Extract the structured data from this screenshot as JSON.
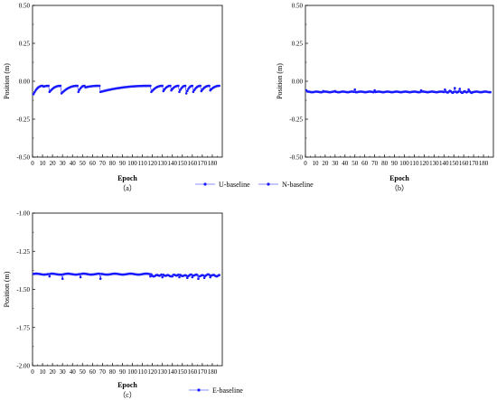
{
  "chart_data": [
    {
      "id": "a",
      "type": "scatter",
      "sublabel": "（a）",
      "xlabel": "Epoch",
      "ylabel": "Position (m)",
      "xlim": [
        0,
        190
      ],
      "ylim": [
        -0.5,
        0.5
      ],
      "xticks": [
        "0",
        "10",
        "20",
        "30",
        "40",
        "50",
        "60",
        "70",
        "80",
        "90",
        "100",
        "110",
        "120",
        "130",
        "140",
        "150",
        "160",
        "170",
        "180"
      ],
      "yticks": [
        "0.50",
        "0.25",
        "0.00",
        "-0.25",
        "-0.50"
      ],
      "ytick_values": [
        0.5,
        0.25,
        0,
        -0.25,
        -0.5
      ],
      "color": "#1a1aff",
      "grid": false,
      "series": [
        {
          "name": "U-baseline",
          "pattern": "sawtooth",
          "baseline": -0.03,
          "segments": [
            [
              1,
              10,
              -0.085
            ],
            [
              11,
              16,
              -0.035
            ],
            [
              17,
              28,
              -0.07
            ],
            [
              29,
              45,
              -0.08
            ],
            [
              46,
              52,
              -0.07
            ],
            [
              53,
              67,
              -0.04
            ],
            [
              68,
              118,
              -0.07
            ],
            [
              119,
              130,
              -0.07
            ],
            [
              131,
              138,
              -0.065
            ],
            [
              139,
              146,
              -0.06
            ],
            [
              147,
              153,
              -0.07
            ],
            [
              154,
              160,
              -0.08
            ],
            [
              161,
              168,
              -0.07
            ],
            [
              169,
              177,
              -0.065
            ],
            [
              178,
              187,
              -0.06
            ]
          ]
        }
      ]
    },
    {
      "id": "b",
      "type": "scatter",
      "sublabel": "（b）",
      "xlabel": "Epoch",
      "ylabel": "Position (m)",
      "xlim": [
        0,
        190
      ],
      "ylim": [
        -0.5,
        0.5
      ],
      "xticks": [
        "0",
        "10",
        "20",
        "30",
        "40",
        "50",
        "60",
        "70",
        "80",
        "90",
        "100",
        "110",
        "120",
        "130",
        "140",
        "150",
        "160",
        "170",
        "180"
      ],
      "yticks": [
        "0.50",
        "0.25",
        "0.00",
        "-0.25",
        "-0.50"
      ],
      "ytick_values": [
        0.5,
        0.25,
        0,
        -0.25,
        -0.5
      ],
      "color": "#1a1aff",
      "grid": false,
      "series": [
        {
          "name": "N-baseline",
          "pattern": "flat",
          "baseline": -0.07,
          "bumps": [
            [
              1,
              -0.06
            ],
            [
              18,
              -0.065
            ],
            [
              30,
              -0.065
            ],
            [
              50,
              -0.055
            ],
            [
              70,
              -0.06
            ],
            [
              117,
              -0.06
            ],
            [
              141,
              -0.055
            ],
            [
              151,
              -0.045
            ],
            [
              156,
              -0.05
            ],
            [
              165,
              -0.055
            ]
          ],
          "segments": [
            [
              1,
              187,
              -0.07
            ]
          ]
        }
      ]
    },
    {
      "id": "c",
      "type": "scatter",
      "sublabel": "（c）",
      "xlabel": "Epoch",
      "ylabel": "Position (m)",
      "xlim": [
        0,
        190
      ],
      "ylim": [
        -2.0,
        -1.0
      ],
      "xticks": [
        "0",
        "10",
        "20",
        "30",
        "40",
        "50",
        "60",
        "70",
        "80",
        "90",
        "100",
        "110",
        "120",
        "130",
        "140",
        "150",
        "160",
        "170",
        "180"
      ],
      "yticks": [
        "-1.00",
        "-1.25",
        "-1.50",
        "-1.75",
        "-2.00"
      ],
      "ytick_values": [
        -1.0,
        -1.25,
        -1.5,
        -1.75,
        -2.0
      ],
      "color": "#1a1aff",
      "grid": false,
      "series": [
        {
          "name": "E-baseline",
          "pattern": "e-trend",
          "baseline": -1.4,
          "dips": [
            [
              17,
              -1.415
            ],
            [
              30,
              -1.43
            ],
            [
              48,
              -1.42
            ],
            [
              68,
              -1.43
            ],
            [
              118,
              -1.415
            ],
            [
              130,
              -1.42
            ],
            [
              140,
              -1.415
            ],
            [
              147,
              -1.42
            ],
            [
              155,
              -1.425
            ],
            [
              160,
              -1.42
            ],
            [
              166,
              -1.43
            ],
            [
              172,
              -1.425
            ],
            [
              178,
              -1.42
            ]
          ],
          "segments": [
            [
              1,
              187,
              -1.41
            ]
          ]
        }
      ]
    }
  ],
  "legends": {
    "top": [
      "U-baseline",
      "N-baseline"
    ],
    "bottom": [
      "E-baseline"
    ]
  }
}
